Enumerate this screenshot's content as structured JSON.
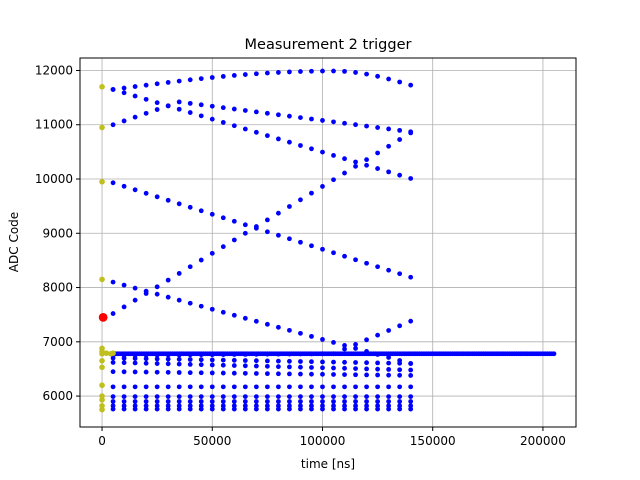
{
  "chart_data": {
    "type": "scatter",
    "title": "Measurement 2 trigger",
    "xlabel": "time [ns]",
    "ylabel": "ADC Code",
    "xlim": [
      -10000,
      215000
    ],
    "ylim": [
      5430,
      12230
    ],
    "xticks": [
      0,
      50000,
      100000,
      150000,
      200000
    ],
    "xtick_labels": [
      "0",
      "50000",
      "100000",
      "150000",
      "200000"
    ],
    "yticks": [
      6000,
      7000,
      8000,
      9000,
      10000,
      11000,
      12000
    ],
    "ytick_labels": [
      "6000",
      "7000",
      "8000",
      "9000",
      "10000",
      "11000",
      "12000"
    ],
    "grid": true,
    "colors": {
      "main": "#0000ff",
      "pretrigger": "#bfbf1f",
      "trigger": "#ff0000",
      "grid": "#b0b0b0"
    },
    "series": [
      {
        "marker": "blue-dot",
        "color": "#0000ff",
        "sample_period": 5000,
        "x_start": 5000,
        "x_end": 140000,
        "curves": [
          {
            "kind": "arc",
            "from": 11650,
            "peak": 11990,
            "peak_at": 105000,
            "to": 11730
          },
          {
            "kind": "linear",
            "from": 11650,
            "to": 10010
          },
          {
            "kind": "linear",
            "from": 11000,
            "to": 10870,
            "via": [
              [
                35000,
                11420
              ]
            ]
          },
          {
            "kind": "linear",
            "from": 9930,
            "to": 8190
          },
          {
            "kind": "linear",
            "from": 7520,
            "to": 10850
          },
          {
            "kind": "linear",
            "from": 8100,
            "to": 6600
          },
          {
            "kind": "linear",
            "from": 6750,
            "to": 7380,
            "via": [
              [
                105000,
                6780
              ]
            ]
          },
          {
            "kind": "linear",
            "from": 6700,
            "to": 6600
          },
          {
            "kind": "linear",
            "from": 6620,
            "to": 6480
          },
          {
            "kind": "linear",
            "from": 6450,
            "to": 6380
          },
          {
            "kind": "constant",
            "value": 6170
          },
          {
            "kind": "constant",
            "value": 5990
          },
          {
            "kind": "constant",
            "value": 5900
          },
          {
            "kind": "constant",
            "value": 5820
          },
          {
            "kind": "constant",
            "value": 5760
          }
        ],
        "baseline": {
          "value": 6780,
          "x_start": 5000,
          "x_end": 205000,
          "step": 1000
        }
      },
      {
        "marker": "olive-dot",
        "color": "#bfbf1f",
        "x": [
          0,
          0,
          0,
          0,
          0,
          0,
          0,
          0,
          0,
          0,
          0,
          0,
          0,
          0,
          2000,
          4000,
          5000
        ],
        "y": [
          11700,
          10950,
          9950,
          8150,
          6880,
          6820,
          6780,
          6650,
          6530,
          6200,
          6000,
          5930,
          5820,
          5750,
          6790,
          6780,
          6790
        ]
      },
      {
        "marker": "trigger-dot",
        "color": "#ff0000",
        "x": [
          500
        ],
        "y": [
          7450
        ]
      }
    ]
  }
}
